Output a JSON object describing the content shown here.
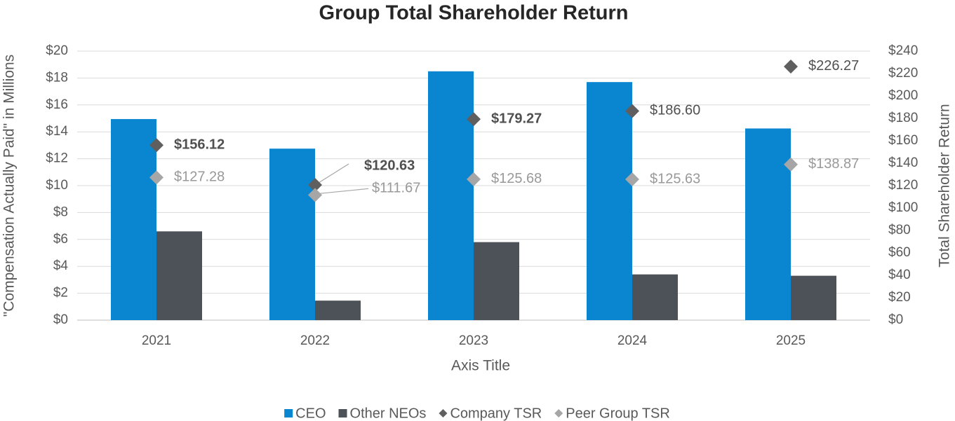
{
  "chart_data": {
    "type": "bar",
    "title": "Group Total Shareholder Return",
    "x_label": "Axis Title",
    "y_label": "\"Compensation Actually Paid\" in Millions",
    "y2_label": "Total Shareholder Return",
    "categories": [
      "2021",
      "2022",
      "2023",
      "2024",
      "2025"
    ],
    "ylim": [
      0,
      20
    ],
    "yticks": [
      {
        "value": 0,
        "label": "$0"
      },
      {
        "value": 2,
        "label": "$2"
      },
      {
        "value": 4,
        "label": "$4"
      },
      {
        "value": 6,
        "label": "$6"
      },
      {
        "value": 8,
        "label": "$8"
      },
      {
        "value": 10,
        "label": "$10"
      },
      {
        "value": 12,
        "label": "$12"
      },
      {
        "value": 14,
        "label": "$14"
      },
      {
        "value": 16,
        "label": "$16"
      },
      {
        "value": 18,
        "label": "$18"
      },
      {
        "value": 20,
        "label": "$20"
      }
    ],
    "y2lim": [
      0,
      240
    ],
    "y2ticks": [
      {
        "value": 0,
        "label": "$0"
      },
      {
        "value": 20,
        "label": "$20"
      },
      {
        "value": 40,
        "label": "$40"
      },
      {
        "value": 60,
        "label": "$60"
      },
      {
        "value": 80,
        "label": "$80"
      },
      {
        "value": 100,
        "label": "$100"
      },
      {
        "value": 120,
        "label": "$120"
      },
      {
        "value": 140,
        "label": "$140"
      },
      {
        "value": 160,
        "label": "$160"
      },
      {
        "value": 180,
        "label": "$180"
      },
      {
        "value": 200,
        "label": "$200"
      },
      {
        "value": 220,
        "label": "$220"
      },
      {
        "value": 240,
        "label": "$240"
      }
    ],
    "grid": true,
    "legend": "bottom",
    "series": [
      {
        "name": "CEO",
        "type": "bar",
        "color": "#0a86d0",
        "values": [
          14.95,
          12.75,
          18.5,
          17.7,
          14.25
        ]
      },
      {
        "name": "Other NEOs",
        "type": "bar",
        "color": "#4d5158",
        "values": [
          6.6,
          1.45,
          5.8,
          3.4,
          3.3
        ]
      },
      {
        "name": "Company TSR",
        "type": "scatter",
        "axis": "y2",
        "color": "#5f5f5f",
        "values": [
          156.12,
          120.63,
          179.27,
          186.6,
          226.27
        ],
        "value_labels": [
          "$156.12",
          "$120.63",
          "$179.27",
          "$186.60",
          "$226.27"
        ]
      },
      {
        "name": "Peer Group TSR",
        "type": "scatter",
        "axis": "y2",
        "color": "#a6a6a6",
        "values": [
          127.28,
          111.67,
          125.68,
          125.63,
          138.87
        ],
        "value_labels": [
          "$127.28",
          "$111.67",
          "$125.68",
          "$125.63",
          "$138.87"
        ]
      }
    ]
  }
}
